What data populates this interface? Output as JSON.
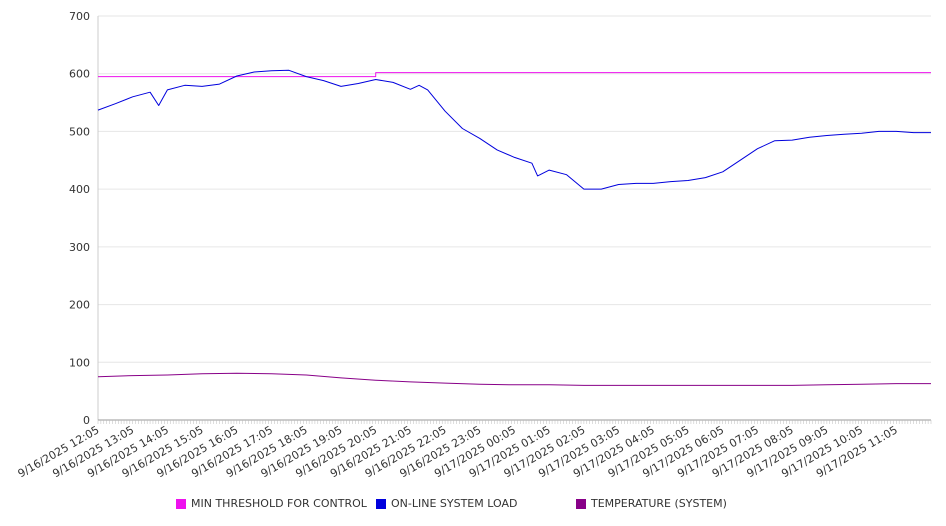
{
  "chart_data": {
    "type": "line",
    "x_start": "9/16/2025 12:05",
    "x_end": "9/17/2025 12:05",
    "x_tick_labels": [
      "9/16/2025 12:05",
      "9/16/2025 13:05",
      "9/16/2025 14:05",
      "9/16/2025 15:05",
      "9/16/2025 16:05",
      "9/16/2025 17:05",
      "9/16/2025 18:05",
      "9/16/2025 19:05",
      "9/16/2025 20:05",
      "9/16/2025 21:05",
      "9/16/2025 22:05",
      "9/16/2025 23:05",
      "9/17/2025 00:05",
      "9/17/2025 01:05",
      "9/17/2025 02:05",
      "9/17/2025 03:05",
      "9/17/2025 04:05",
      "9/17/2025 05:05",
      "9/17/2025 06:05",
      "9/17/2025 07:05",
      "9/17/2025 08:05",
      "9/17/2025 09:05",
      "9/17/2025 10:05",
      "9/17/2025 11:05"
    ],
    "ylim": [
      0,
      700
    ],
    "y_ticks": [
      0,
      100,
      200,
      300,
      400,
      500,
      600,
      700
    ],
    "grid": true,
    "legend_position": "bottom",
    "series": [
      {
        "name": "MIN THRESHOLD FOR CONTROL",
        "color": "#ee11ee",
        "points": [
          [
            "9/16/2025 12:05",
            595
          ],
          [
            "9/16/2025 20:05",
            595
          ],
          [
            "9/16/2025 20:05",
            602
          ],
          [
            "9/17/2025 12:05",
            602
          ]
        ]
      },
      {
        "name": "ON-LINE SYSTEM LOAD",
        "color": "#0000dd",
        "points": [
          [
            "9/16/2025 12:05",
            537
          ],
          [
            "9/16/2025 12:35",
            548
          ],
          [
            "9/16/2025 13:05",
            560
          ],
          [
            "9/16/2025 13:35",
            568
          ],
          [
            "9/16/2025 13:50",
            545
          ],
          [
            "9/16/2025 14:05",
            572
          ],
          [
            "9/16/2025 14:35",
            580
          ],
          [
            "9/16/2025 15:05",
            578
          ],
          [
            "9/16/2025 15:35",
            582
          ],
          [
            "9/16/2025 16:05",
            596
          ],
          [
            "9/16/2025 16:35",
            603
          ],
          [
            "9/16/2025 17:05",
            605
          ],
          [
            "9/16/2025 17:35",
            606
          ],
          [
            "9/16/2025 18:05",
            595
          ],
          [
            "9/16/2025 18:35",
            588
          ],
          [
            "9/16/2025 19:05",
            578
          ],
          [
            "9/16/2025 19:35",
            583
          ],
          [
            "9/16/2025 20:05",
            590
          ],
          [
            "9/16/2025 20:35",
            585
          ],
          [
            "9/16/2025 21:05",
            573
          ],
          [
            "9/16/2025 21:20",
            580
          ],
          [
            "9/16/2025 21:35",
            572
          ],
          [
            "9/16/2025 22:05",
            535
          ],
          [
            "9/16/2025 22:35",
            505
          ],
          [
            "9/16/2025 23:05",
            488
          ],
          [
            "9/16/2025 23:35",
            468
          ],
          [
            "9/17/2025 00:05",
            455
          ],
          [
            "9/17/2025 00:35",
            445
          ],
          [
            "9/17/2025 00:45",
            423
          ],
          [
            "9/17/2025 01:05",
            433
          ],
          [
            "9/17/2025 01:35",
            425
          ],
          [
            "9/17/2025 02:05",
            400
          ],
          [
            "9/17/2025 02:35",
            400
          ],
          [
            "9/17/2025 03:05",
            408
          ],
          [
            "9/17/2025 03:35",
            410
          ],
          [
            "9/17/2025 04:05",
            410
          ],
          [
            "9/17/2025 04:35",
            413
          ],
          [
            "9/17/2025 05:05",
            415
          ],
          [
            "9/17/2025 05:35",
            420
          ],
          [
            "9/17/2025 06:05",
            430
          ],
          [
            "9/17/2025 06:35",
            450
          ],
          [
            "9/17/2025 07:05",
            470
          ],
          [
            "9/17/2025 07:35",
            484
          ],
          [
            "9/17/2025 08:05",
            485
          ],
          [
            "9/17/2025 08:35",
            490
          ],
          [
            "9/17/2025 09:05",
            493
          ],
          [
            "9/17/2025 09:35",
            495
          ],
          [
            "9/17/2025 10:05",
            497
          ],
          [
            "9/17/2025 10:35",
            500
          ],
          [
            "9/17/2025 11:05",
            500
          ],
          [
            "9/17/2025 11:35",
            498
          ],
          [
            "9/17/2025 12:05",
            498
          ]
        ]
      },
      {
        "name": "TEMPERATURE (SYSTEM)",
        "color": "#880088",
        "points": [
          [
            "9/16/2025 12:05",
            75
          ],
          [
            "9/16/2025 13:05",
            77
          ],
          [
            "9/16/2025 14:05",
            78
          ],
          [
            "9/16/2025 15:05",
            80
          ],
          [
            "9/16/2025 16:05",
            81
          ],
          [
            "9/16/2025 17:05",
            80
          ],
          [
            "9/16/2025 18:05",
            78
          ],
          [
            "9/16/2025 19:05",
            73
          ],
          [
            "9/16/2025 20:05",
            69
          ],
          [
            "9/16/2025 21:05",
            66
          ],
          [
            "9/16/2025 22:05",
            64
          ],
          [
            "9/16/2025 23:05",
            62
          ],
          [
            "9/17/2025 00:05",
            61
          ],
          [
            "9/17/2025 01:05",
            61
          ],
          [
            "9/17/2025 02:05",
            60
          ],
          [
            "9/17/2025 03:05",
            60
          ],
          [
            "9/17/2025 04:05",
            60
          ],
          [
            "9/17/2025 05:05",
            60
          ],
          [
            "9/17/2025 06:05",
            60
          ],
          [
            "9/17/2025 07:05",
            60
          ],
          [
            "9/17/2025 08:05",
            60
          ],
          [
            "9/17/2025 09:05",
            61
          ],
          [
            "9/17/2025 10:05",
            62
          ],
          [
            "9/17/2025 11:05",
            63
          ],
          [
            "9/17/2025 12:05",
            63
          ]
        ]
      }
    ]
  },
  "legend": {
    "items": [
      {
        "label": "MIN THRESHOLD FOR CONTROL",
        "color": "#ee11ee"
      },
      {
        "label": "ON-LINE SYSTEM LOAD",
        "color": "#0000dd"
      },
      {
        "label": "TEMPERATURE (SYSTEM)",
        "color": "#880088"
      }
    ]
  }
}
